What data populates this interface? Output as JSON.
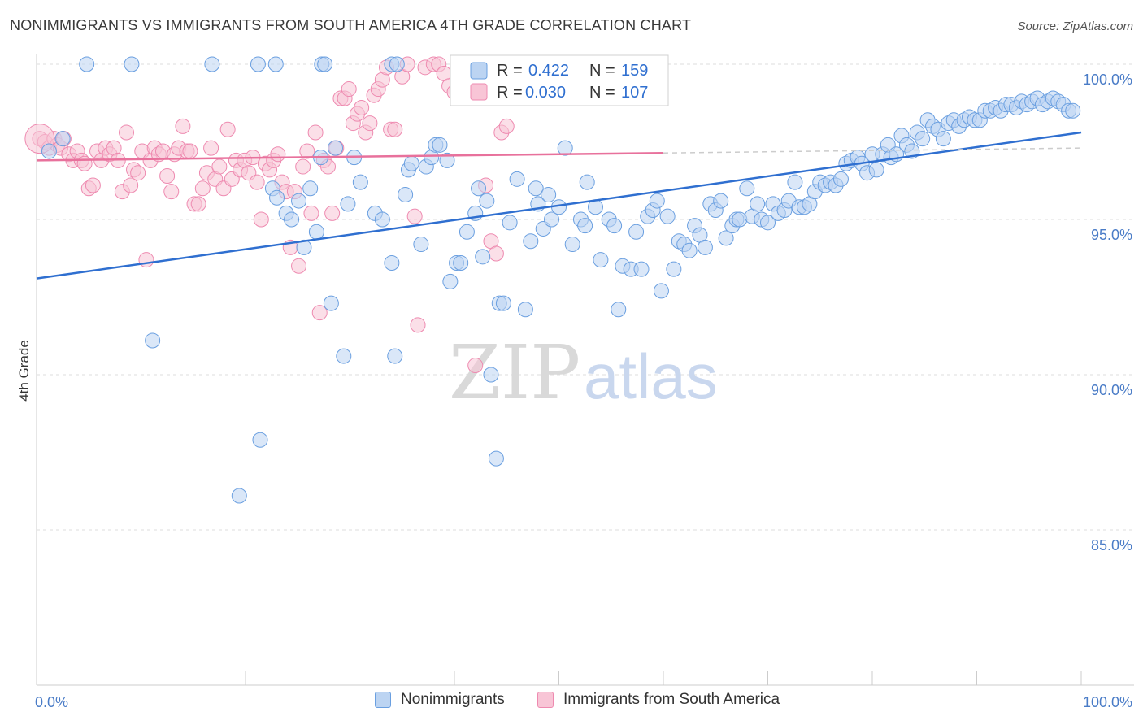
{
  "title": "NONIMMIGRANTS VS IMMIGRANTS FROM SOUTH AMERICA 4TH GRADE CORRELATION CHART",
  "source": "Source: ZipAtlas.com",
  "watermark": {
    "zip": "ZIP",
    "atlas": "atlas"
  },
  "colors": {
    "blue": "#6a9fe0",
    "blue_fill": "#bcd4f2",
    "blue_line": "#2f6fd0",
    "pink": "#ee8ab0",
    "pink_fill": "#f8c5d6",
    "pink_line": "#e8719c",
    "axis_text": "#4a7cc7",
    "grid": "#dddddd"
  },
  "legend": {
    "r_label": "R =",
    "n_label": "N =",
    "rows": [
      {
        "r": "0.422",
        "n": "159",
        "color": "blue"
      },
      {
        "r": "0.030",
        "n": "107",
        "color": "pink"
      }
    ]
  },
  "bottom_legend": [
    {
      "label": "Nonimmigrants",
      "color": "blue"
    },
    {
      "label": "Immigrants from South America",
      "color": "pink"
    }
  ],
  "chart_data": {
    "type": "scatter",
    "title": "NONIMMIGRANTS VS IMMIGRANTS FROM SOUTH AMERICA 4TH GRADE CORRELATION CHART",
    "ylabel": "4th Grade",
    "xlabel": "",
    "x_tick_labels": [
      "0.0%",
      "100.0%"
    ],
    "y_tick_labels": [
      "100.0%",
      "95.0%",
      "90.0%",
      "85.0%"
    ],
    "y_ticks": [
      100,
      95,
      90,
      85
    ],
    "xlim": [
      0,
      100
    ],
    "ylim": [
      80,
      100.4
    ],
    "grid": true,
    "legend_position": "top-center",
    "series": [
      {
        "name": "Nonimmigrants",
        "color": "blue",
        "R": 0.422,
        "N": 159,
        "trend": {
          "x": [
            0,
            100
          ],
          "y": [
            93.1,
            97.8
          ],
          "dashed_from": null
        },
        "points": [
          [
            4.8,
            100
          ],
          [
            9.1,
            100
          ],
          [
            16.8,
            100
          ],
          [
            21.2,
            100
          ],
          [
            22.9,
            100
          ],
          [
            27.3,
            100
          ],
          [
            27.6,
            100
          ],
          [
            34.0,
            100
          ],
          [
            34.5,
            100
          ],
          [
            1.2,
            97.2
          ],
          [
            2.5,
            97.6
          ],
          [
            11.1,
            91.1
          ],
          [
            19.4,
            86.1
          ],
          [
            21.4,
            87.9
          ],
          [
            22.6,
            96.0
          ],
          [
            23.0,
            95.7
          ],
          [
            23.9,
            95.2
          ],
          [
            24.4,
            95.0
          ],
          [
            25.1,
            95.6
          ],
          [
            25.6,
            94.1
          ],
          [
            26.2,
            96.0
          ],
          [
            26.8,
            94.6
          ],
          [
            27.2,
            97.0
          ],
          [
            28.2,
            92.3
          ],
          [
            28.6,
            97.3
          ],
          [
            29.4,
            90.6
          ],
          [
            29.8,
            95.5
          ],
          [
            30.4,
            97.0
          ],
          [
            31.0,
            96.2
          ],
          [
            32.4,
            95.2
          ],
          [
            33.1,
            95.0
          ],
          [
            34.0,
            93.6
          ],
          [
            34.3,
            90.6
          ],
          [
            35.3,
            95.8
          ],
          [
            35.6,
            96.6
          ],
          [
            35.9,
            96.8
          ],
          [
            36.8,
            94.2
          ],
          [
            37.3,
            96.7
          ],
          [
            37.8,
            97.0
          ],
          [
            38.2,
            97.4
          ],
          [
            38.6,
            97.4
          ],
          [
            39.3,
            96.9
          ],
          [
            39.6,
            93.0
          ],
          [
            40.2,
            93.6
          ],
          [
            40.6,
            93.6
          ],
          [
            41.2,
            94.6
          ],
          [
            42.0,
            95.2
          ],
          [
            42.3,
            96.0
          ],
          [
            42.7,
            93.8
          ],
          [
            43.1,
            95.6
          ],
          [
            43.5,
            90.0
          ],
          [
            44.0,
            87.3
          ],
          [
            44.3,
            92.3
          ],
          [
            44.7,
            92.3
          ],
          [
            45.3,
            94.9
          ],
          [
            46.0,
            96.3
          ],
          [
            46.8,
            92.1
          ],
          [
            47.3,
            94.3
          ],
          [
            47.8,
            96.0
          ],
          [
            48.0,
            95.5
          ],
          [
            48.5,
            94.7
          ],
          [
            49.0,
            95.8
          ],
          [
            49.3,
            95.0
          ],
          [
            50.0,
            95.4
          ],
          [
            50.6,
            97.3
          ],
          [
            51.3,
            94.2
          ],
          [
            52.1,
            95.0
          ],
          [
            52.5,
            94.8
          ],
          [
            52.7,
            96.2
          ],
          [
            53.5,
            95.4
          ],
          [
            54.0,
            93.7
          ],
          [
            54.8,
            95.0
          ],
          [
            55.3,
            94.8
          ],
          [
            55.7,
            92.1
          ],
          [
            56.1,
            93.5
          ],
          [
            56.9,
            93.4
          ],
          [
            57.4,
            94.6
          ],
          [
            57.9,
            93.4
          ],
          [
            58.5,
            95.1
          ],
          [
            59.0,
            95.3
          ],
          [
            59.4,
            95.6
          ],
          [
            59.8,
            92.7
          ],
          [
            60.4,
            95.1
          ],
          [
            61.0,
            93.4
          ],
          [
            61.5,
            94.3
          ],
          [
            62.0,
            94.2
          ],
          [
            62.5,
            94.0
          ],
          [
            63.0,
            94.8
          ],
          [
            63.5,
            94.5
          ],
          [
            64.0,
            94.1
          ],
          [
            64.5,
            95.5
          ],
          [
            65.0,
            95.3
          ],
          [
            65.5,
            95.6
          ],
          [
            66.0,
            94.4
          ],
          [
            66.6,
            94.8
          ],
          [
            67.0,
            95.0
          ],
          [
            67.3,
            95.0
          ],
          [
            68.0,
            96.0
          ],
          [
            68.5,
            95.1
          ],
          [
            69.0,
            95.5
          ],
          [
            69.4,
            95.0
          ],
          [
            70.0,
            94.9
          ],
          [
            70.5,
            95.5
          ],
          [
            71.0,
            95.2
          ],
          [
            71.6,
            95.3
          ],
          [
            72.0,
            95.6
          ],
          [
            72.6,
            96.2
          ],
          [
            73.0,
            95.4
          ],
          [
            73.5,
            95.4
          ],
          [
            74.0,
            95.5
          ],
          [
            74.5,
            95.9
          ],
          [
            75.0,
            96.2
          ],
          [
            75.5,
            96.1
          ],
          [
            76.0,
            96.2
          ],
          [
            76.5,
            96.1
          ],
          [
            77.0,
            96.3
          ],
          [
            77.5,
            96.8
          ],
          [
            78.0,
            96.9
          ],
          [
            78.6,
            97.0
          ],
          [
            79.0,
            96.8
          ],
          [
            79.5,
            96.5
          ],
          [
            80.0,
            97.1
          ],
          [
            80.4,
            96.6
          ],
          [
            81.0,
            97.1
          ],
          [
            81.5,
            97.4
          ],
          [
            81.8,
            97.0
          ],
          [
            82.3,
            97.1
          ],
          [
            82.8,
            97.7
          ],
          [
            83.3,
            97.4
          ],
          [
            83.8,
            97.2
          ],
          [
            84.3,
            97.8
          ],
          [
            84.8,
            97.6
          ],
          [
            85.3,
            98.2
          ],
          [
            85.8,
            98.0
          ],
          [
            86.3,
            97.9
          ],
          [
            86.8,
            97.6
          ],
          [
            87.3,
            98.1
          ],
          [
            87.8,
            98.2
          ],
          [
            88.3,
            98.0
          ],
          [
            88.8,
            98.2
          ],
          [
            89.3,
            98.3
          ],
          [
            89.8,
            98.2
          ],
          [
            90.3,
            98.2
          ],
          [
            90.8,
            98.5
          ],
          [
            91.3,
            98.5
          ],
          [
            91.8,
            98.6
          ],
          [
            92.3,
            98.5
          ],
          [
            92.8,
            98.7
          ],
          [
            93.3,
            98.7
          ],
          [
            93.8,
            98.6
          ],
          [
            94.3,
            98.8
          ],
          [
            94.8,
            98.7
          ],
          [
            95.3,
            98.8
          ],
          [
            95.8,
            98.9
          ],
          [
            96.3,
            98.7
          ],
          [
            96.8,
            98.8
          ],
          [
            97.3,
            98.9
          ],
          [
            97.8,
            98.8
          ],
          [
            98.3,
            98.7
          ],
          [
            98.8,
            98.5
          ],
          [
            99.2,
            98.5
          ]
        ]
      },
      {
        "name": "Immigrants from South America",
        "color": "pink",
        "R": 0.03,
        "N": 107,
        "trend": {
          "x": [
            0,
            100
          ],
          "y": [
            96.9,
            97.3
          ],
          "dashed_from": 60
        },
        "points": [
          [
            0.3,
            97.6
          ],
          [
            0.8,
            97.5
          ],
          [
            1.2,
            97.3
          ],
          [
            1.7,
            97.6
          ],
          [
            2.0,
            97.4
          ],
          [
            2.3,
            97.3
          ],
          [
            2.6,
            97.6
          ],
          [
            3.1,
            97.1
          ],
          [
            3.5,
            96.9
          ],
          [
            3.9,
            97.2
          ],
          [
            4.3,
            96.9
          ],
          [
            4.6,
            96.8
          ],
          [
            5.0,
            96.0
          ],
          [
            5.4,
            96.1
          ],
          [
            5.8,
            97.2
          ],
          [
            6.2,
            96.9
          ],
          [
            6.6,
            97.3
          ],
          [
            7.0,
            97.1
          ],
          [
            7.4,
            97.3
          ],
          [
            7.8,
            96.9
          ],
          [
            8.2,
            95.9
          ],
          [
            8.6,
            97.8
          ],
          [
            9.0,
            96.1
          ],
          [
            9.3,
            96.6
          ],
          [
            9.7,
            96.5
          ],
          [
            10.1,
            97.2
          ],
          [
            10.5,
            93.7
          ],
          [
            10.9,
            96.9
          ],
          [
            11.3,
            97.3
          ],
          [
            11.7,
            97.1
          ],
          [
            12.1,
            97.2
          ],
          [
            12.5,
            96.4
          ],
          [
            12.9,
            95.9
          ],
          [
            13.2,
            97.1
          ],
          [
            13.6,
            97.3
          ],
          [
            14.0,
            98.0
          ],
          [
            14.4,
            97.2
          ],
          [
            14.7,
            97.2
          ],
          [
            15.1,
            95.5
          ],
          [
            15.5,
            95.5
          ],
          [
            15.9,
            96.0
          ],
          [
            16.3,
            96.5
          ],
          [
            16.7,
            97.3
          ],
          [
            17.1,
            96.3
          ],
          [
            17.5,
            96.7
          ],
          [
            17.9,
            96.0
          ],
          [
            18.3,
            97.9
          ],
          [
            18.7,
            96.3
          ],
          [
            19.1,
            96.9
          ],
          [
            19.5,
            96.6
          ],
          [
            19.9,
            96.9
          ],
          [
            20.3,
            96.5
          ],
          [
            20.7,
            97.0
          ],
          [
            21.1,
            96.2
          ],
          [
            21.5,
            95.0
          ],
          [
            21.9,
            96.8
          ],
          [
            22.3,
            96.6
          ],
          [
            22.7,
            96.9
          ],
          [
            23.1,
            97.1
          ],
          [
            23.5,
            96.2
          ],
          [
            23.9,
            95.9
          ],
          [
            24.3,
            94.1
          ],
          [
            24.7,
            95.9
          ],
          [
            25.1,
            93.5
          ],
          [
            25.5,
            96.7
          ],
          [
            25.9,
            97.2
          ],
          [
            26.3,
            95.2
          ],
          [
            26.7,
            97.8
          ],
          [
            27.1,
            92.0
          ],
          [
            27.5,
            96.9
          ],
          [
            27.9,
            96.7
          ],
          [
            28.3,
            95.2
          ],
          [
            28.7,
            97.3
          ],
          [
            29.1,
            98.9
          ],
          [
            29.5,
            98.9
          ],
          [
            29.9,
            99.2
          ],
          [
            30.3,
            98.1
          ],
          [
            30.7,
            98.4
          ],
          [
            31.1,
            98.6
          ],
          [
            31.5,
            97.8
          ],
          [
            31.9,
            98.1
          ],
          [
            32.3,
            99.0
          ],
          [
            32.7,
            99.2
          ],
          [
            33.1,
            99.5
          ],
          [
            33.5,
            99.9
          ],
          [
            33.9,
            97.9
          ],
          [
            34.3,
            97.9
          ],
          [
            35.0,
            99.6
          ],
          [
            35.5,
            100
          ],
          [
            36.2,
            95.1
          ],
          [
            36.5,
            91.6
          ],
          [
            37.2,
            99.9
          ],
          [
            38.0,
            100
          ],
          [
            38.5,
            100
          ],
          [
            39.0,
            99.7
          ],
          [
            39.5,
            99.3
          ],
          [
            40.0,
            99.1
          ],
          [
            40.5,
            100
          ],
          [
            41.0,
            99.9
          ],
          [
            41.5,
            99.1
          ],
          [
            42.0,
            90.3
          ],
          [
            42.5,
            100
          ],
          [
            43.0,
            96.1
          ],
          [
            43.5,
            94.3
          ],
          [
            44.0,
            93.9
          ],
          [
            44.5,
            97.8
          ],
          [
            45.0,
            98.0
          ],
          [
            46.0,
            99.6
          ]
        ]
      }
    ]
  }
}
